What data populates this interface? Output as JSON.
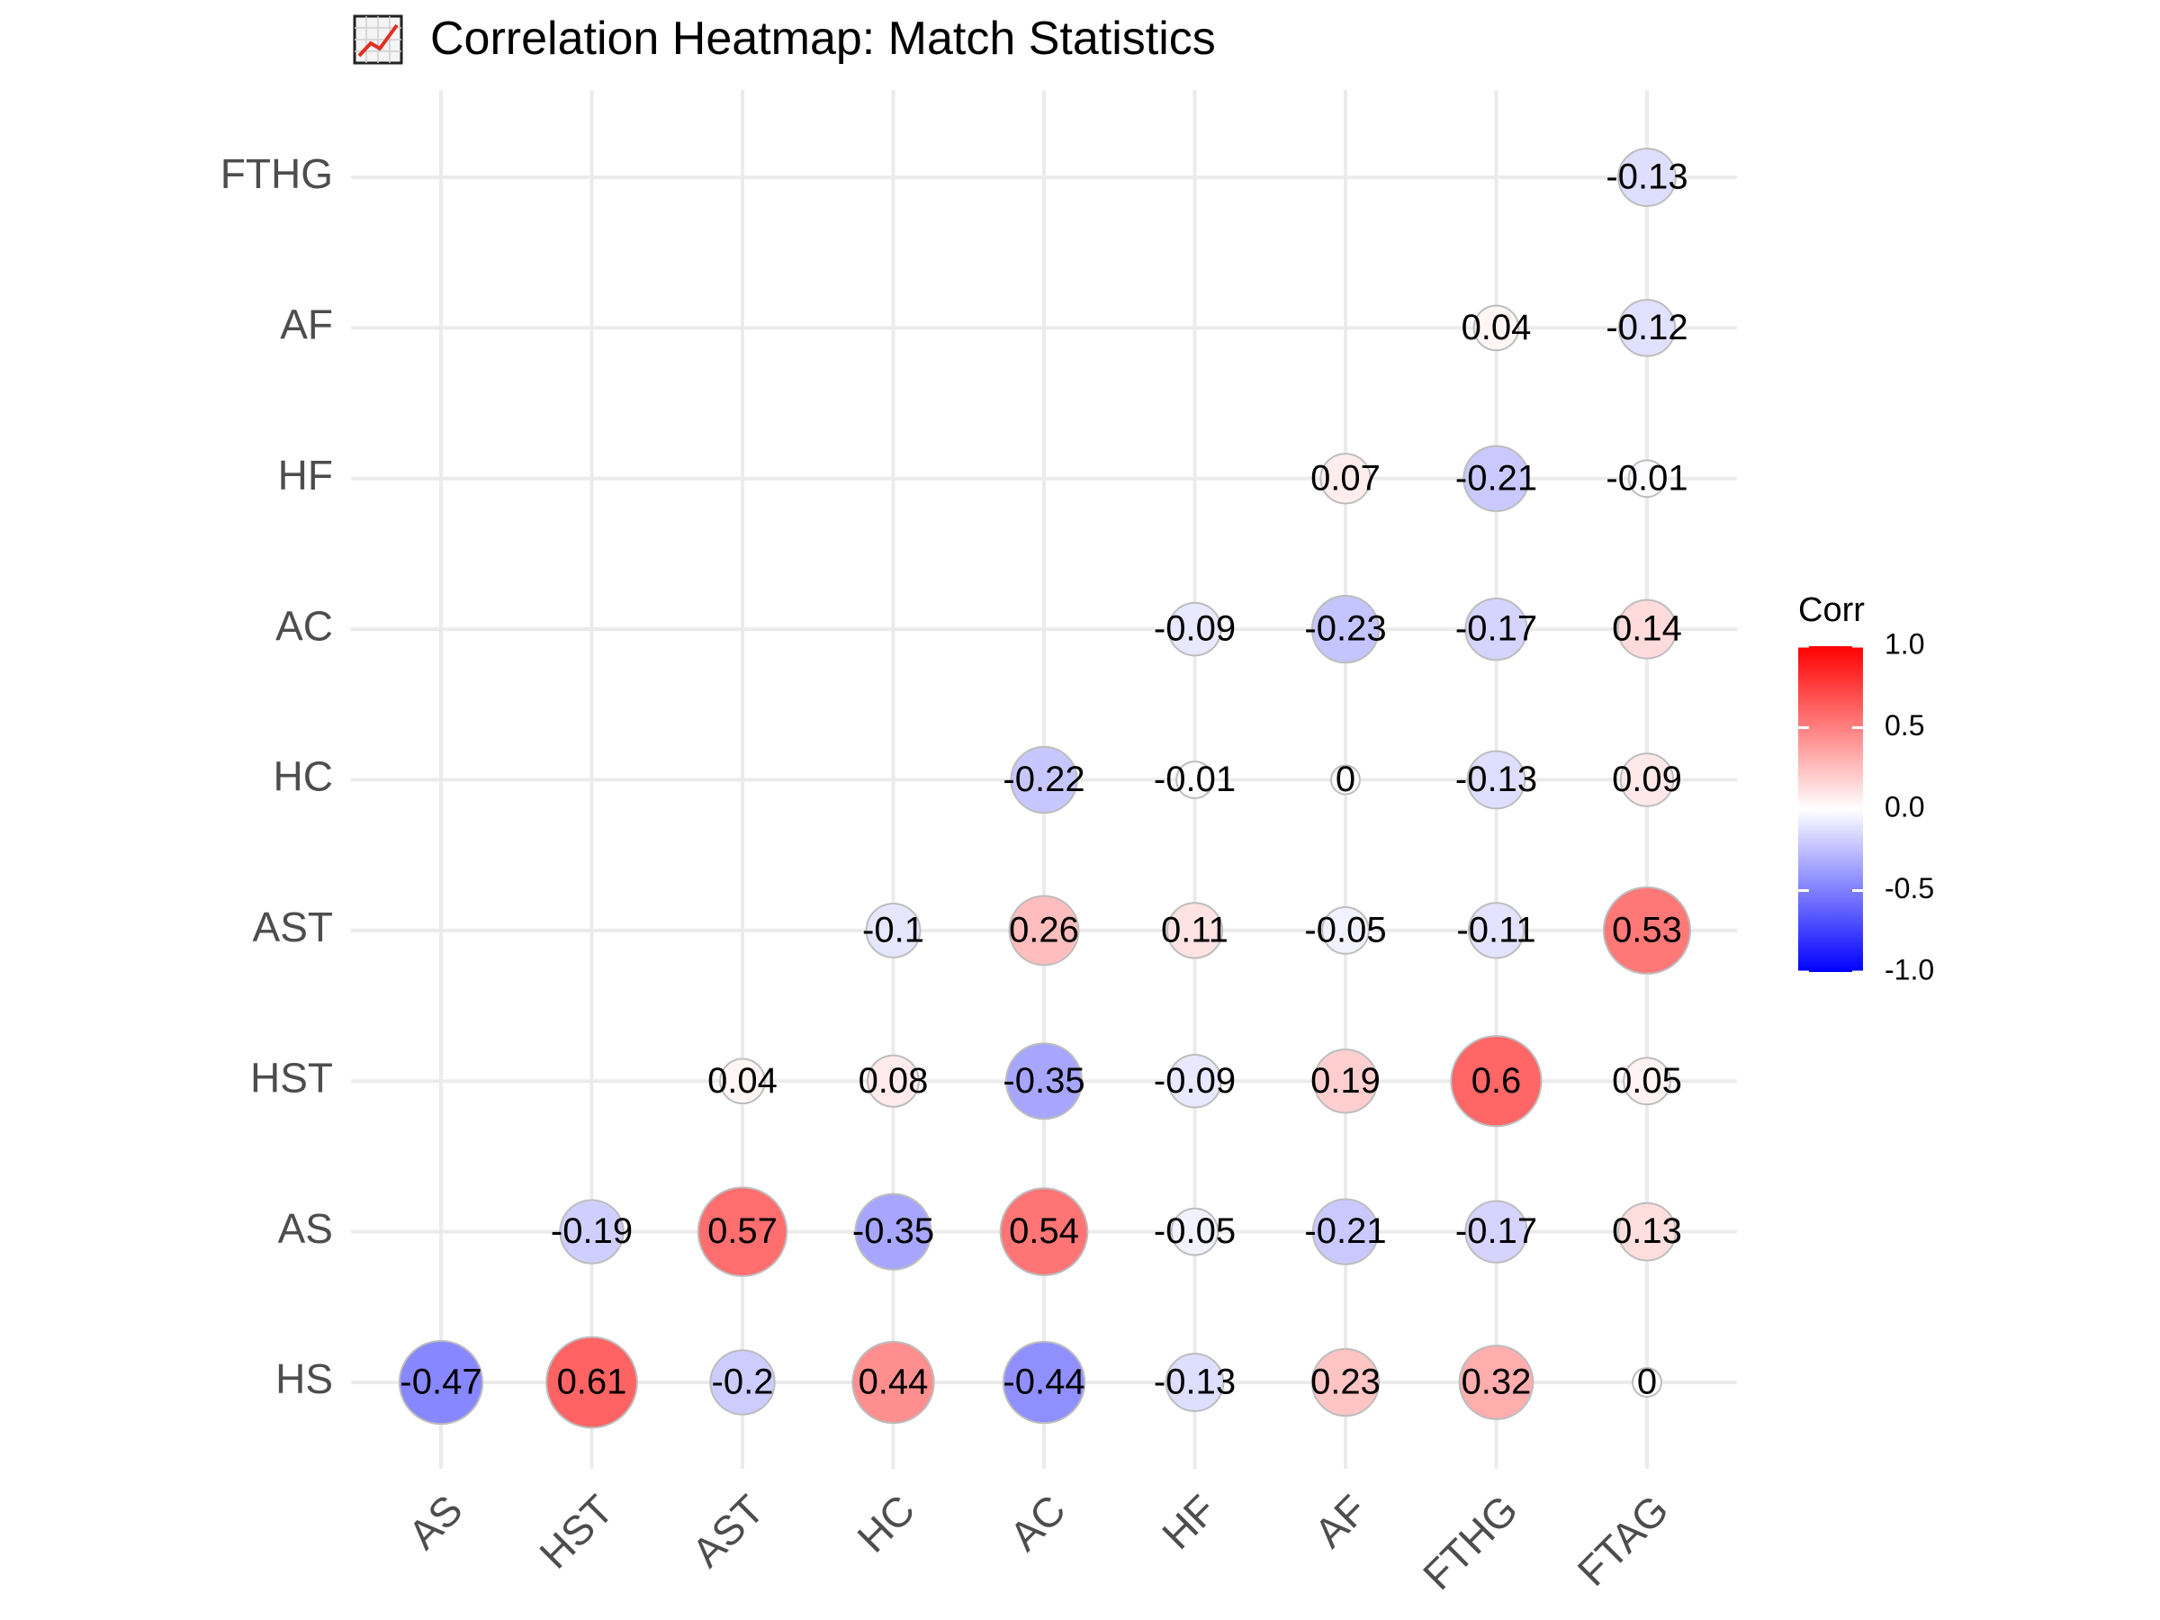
{
  "chart_data": {
    "type": "heatmap",
    "title": "Correlation Heatmap: Match Statistics",
    "title_icon": "chart-increasing-icon",
    "x_categories": [
      "AS",
      "HST",
      "AST",
      "HC",
      "AC",
      "HF",
      "AF",
      "FTHG",
      "FTAG"
    ],
    "y_categories": [
      "HS",
      "AS",
      "HST",
      "AST",
      "HC",
      "AC",
      "HF",
      "AF",
      "FTHG"
    ],
    "xlabel": "",
    "ylabel": "",
    "legend": {
      "title": "Corr",
      "ticks": [
        "1.0",
        "0.5",
        "0.0",
        "-0.5",
        "-1.0"
      ],
      "range": [
        -1,
        1
      ],
      "placement": "right"
    },
    "colors": {
      "low": "#0000ff",
      "mid": "#ffffff",
      "high": "#ff0000",
      "grid": "#ebebeb",
      "circle_outline": "#bdbdbd"
    },
    "grid": true,
    "cells": [
      {
        "row": "HS",
        "col": "AS",
        "value": -0.47,
        "label": "-0.47"
      },
      {
        "row": "HS",
        "col": "HST",
        "value": 0.61,
        "label": "0.61"
      },
      {
        "row": "HS",
        "col": "AST",
        "value": -0.2,
        "label": "-0.2"
      },
      {
        "row": "HS",
        "col": "HC",
        "value": 0.44,
        "label": "0.44"
      },
      {
        "row": "HS",
        "col": "AC",
        "value": -0.44,
        "label": "-0.44"
      },
      {
        "row": "HS",
        "col": "HF",
        "value": -0.13,
        "label": "-0.13"
      },
      {
        "row": "HS",
        "col": "AF",
        "value": 0.23,
        "label": "0.23"
      },
      {
        "row": "HS",
        "col": "FTHG",
        "value": 0.32,
        "label": "0.32"
      },
      {
        "row": "HS",
        "col": "FTAG",
        "value": 0,
        "label": "0"
      },
      {
        "row": "AS",
        "col": "HST",
        "value": -0.19,
        "label": "-0.19"
      },
      {
        "row": "AS",
        "col": "AST",
        "value": 0.57,
        "label": "0.57"
      },
      {
        "row": "AS",
        "col": "HC",
        "value": -0.35,
        "label": "-0.35"
      },
      {
        "row": "AS",
        "col": "AC",
        "value": 0.54,
        "label": "0.54"
      },
      {
        "row": "AS",
        "col": "HF",
        "value": -0.05,
        "label": "-0.05"
      },
      {
        "row": "AS",
        "col": "AF",
        "value": -0.21,
        "label": "-0.21"
      },
      {
        "row": "AS",
        "col": "FTHG",
        "value": -0.17,
        "label": "-0.17"
      },
      {
        "row": "AS",
        "col": "FTAG",
        "value": 0.13,
        "label": "0.13"
      },
      {
        "row": "HST",
        "col": "AST",
        "value": 0.04,
        "label": "0.04"
      },
      {
        "row": "HST",
        "col": "HC",
        "value": 0.08,
        "label": "0.08"
      },
      {
        "row": "HST",
        "col": "AC",
        "value": -0.35,
        "label": "-0.35"
      },
      {
        "row": "HST",
        "col": "HF",
        "value": -0.09,
        "label": "-0.09"
      },
      {
        "row": "HST",
        "col": "AF",
        "value": 0.19,
        "label": "0.19"
      },
      {
        "row": "HST",
        "col": "FTHG",
        "value": 0.6,
        "label": "0.6"
      },
      {
        "row": "HST",
        "col": "FTAG",
        "value": 0.05,
        "label": "0.05"
      },
      {
        "row": "AST",
        "col": "HC",
        "value": -0.1,
        "label": "-0.1"
      },
      {
        "row": "AST",
        "col": "AC",
        "value": 0.26,
        "label": "0.26"
      },
      {
        "row": "AST",
        "col": "HF",
        "value": 0.11,
        "label": "0.11"
      },
      {
        "row": "AST",
        "col": "AF",
        "value": -0.05,
        "label": "-0.05"
      },
      {
        "row": "AST",
        "col": "FTHG",
        "value": -0.11,
        "label": "-0.11"
      },
      {
        "row": "AST",
        "col": "FTAG",
        "value": 0.53,
        "label": "0.53"
      },
      {
        "row": "HC",
        "col": "AC",
        "value": -0.22,
        "label": "-0.22"
      },
      {
        "row": "HC",
        "col": "HF",
        "value": -0.01,
        "label": "-0.01"
      },
      {
        "row": "HC",
        "col": "AF",
        "value": 0,
        "label": "0"
      },
      {
        "row": "HC",
        "col": "FTHG",
        "value": -0.13,
        "label": "-0.13"
      },
      {
        "row": "HC",
        "col": "FTAG",
        "value": 0.09,
        "label": "0.09"
      },
      {
        "row": "AC",
        "col": "HF",
        "value": -0.09,
        "label": "-0.09"
      },
      {
        "row": "AC",
        "col": "AF",
        "value": -0.23,
        "label": "-0.23"
      },
      {
        "row": "AC",
        "col": "FTHG",
        "value": -0.17,
        "label": "-0.17"
      },
      {
        "row": "AC",
        "col": "FTAG",
        "value": 0.14,
        "label": "0.14"
      },
      {
        "row": "HF",
        "col": "AF",
        "value": 0.07,
        "label": "0.07"
      },
      {
        "row": "HF",
        "col": "FTHG",
        "value": -0.21,
        "label": "-0.21"
      },
      {
        "row": "HF",
        "col": "FTAG",
        "value": -0.01,
        "label": "-0.01"
      },
      {
        "row": "AF",
        "col": "FTHG",
        "value": 0.04,
        "label": "0.04"
      },
      {
        "row": "AF",
        "col": "FTAG",
        "value": -0.12,
        "label": "-0.12"
      },
      {
        "row": "FTHG",
        "col": "FTAG",
        "value": -0.13,
        "label": "-0.13"
      }
    ]
  }
}
